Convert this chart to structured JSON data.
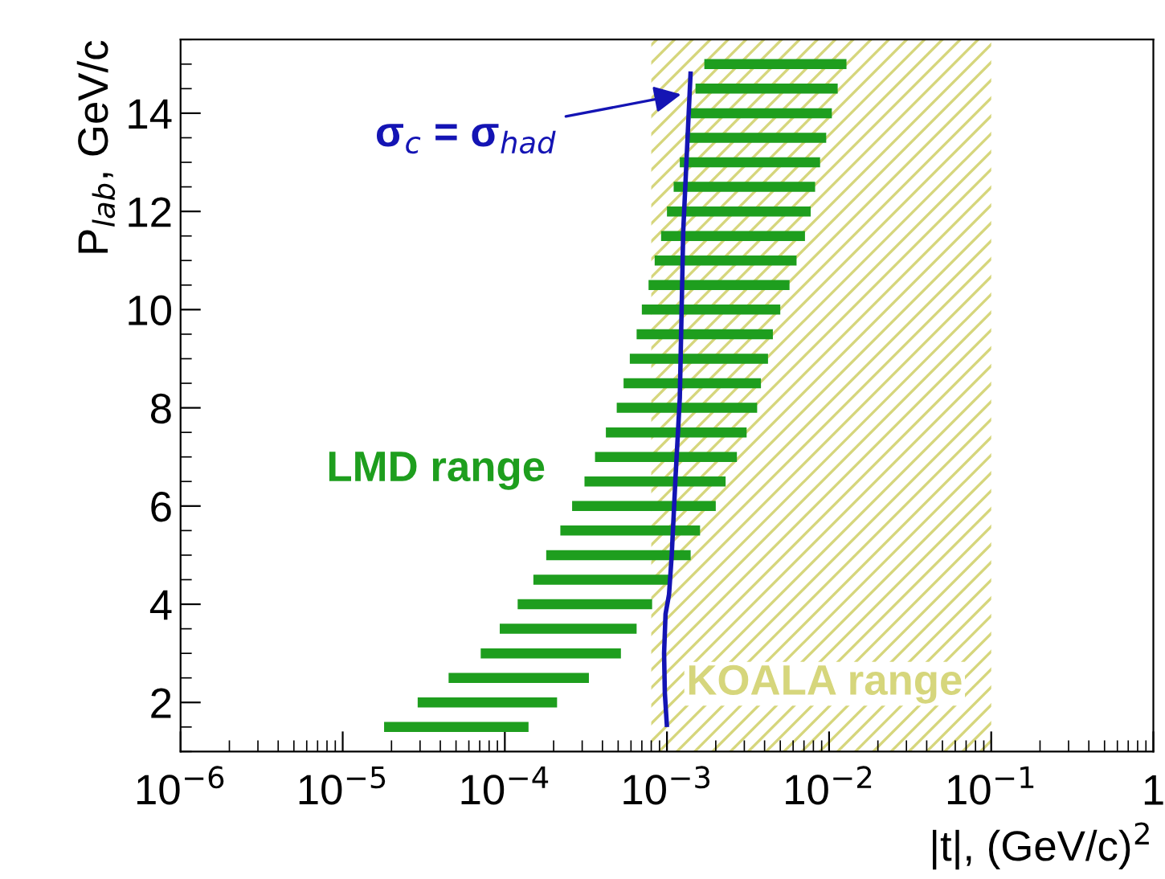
{
  "chart_data": {
    "type": "line",
    "xlabel": "|t|, (GeV/c)$^{2}$",
    "ylabel": "P$_{lab}$, GeV/c",
    "log": "x",
    "xlim": [
      1e-06,
      1
    ],
    "ylim": [
      1,
      15.5
    ],
    "xticks": [
      {
        "value": 1e-06,
        "label": "10$^{−6}$"
      },
      {
        "value": 1e-05,
        "label": "10$^{−5}$"
      },
      {
        "value": 0.0001,
        "label": "10$^{−4}$"
      },
      {
        "value": 0.001,
        "label": "10$^{−3}$"
      },
      {
        "value": 0.01,
        "label": "10$^{−2}$"
      },
      {
        "value": 0.1,
        "label": "10$^{−1}$"
      },
      1
    ],
    "yticks": [
      2,
      4,
      6,
      8,
      10,
      12,
      14
    ],
    "grid": false,
    "legend": false,
    "annotations": [
      {
        "text": "σ$_{c}$ = σ$_{had}$",
        "x": 0.0013,
        "y": 14.4
      }
    ],
    "bands": [
      {
        "axis": "x",
        "from": 0.0008,
        "to": 0.1,
        "label": "KOALA range",
        "color": "#d6d67c"
      }
    ],
    "series": [
      {
        "name": "LMD range",
        "color": "#1e9e1e",
        "line_style": "solid",
        "marker": "none",
        "x": [
          1.8e-05,
          0.00014,
          null,
          2.9e-05,
          0.00021,
          null,
          4.5e-05,
          0.00033,
          null,
          7.1e-05,
          0.00052,
          null,
          9.3e-05,
          0.00065,
          null,
          0.00012,
          0.00081,
          null,
          0.00015,
          0.00105,
          null,
          0.00018,
          0.0014,
          null,
          0.00022,
          0.0016,
          null,
          0.00026,
          0.002,
          null,
          0.00031,
          0.0023,
          null,
          0.00036,
          0.0027,
          null,
          0.00042,
          0.0031,
          null,
          0.00049,
          0.0036,
          null,
          0.00054,
          0.0038,
          null,
          0.00059,
          0.0042,
          null,
          0.00065,
          0.0045,
          null,
          0.0007,
          0.005,
          null,
          0.00077,
          0.0057,
          null,
          0.00084,
          0.0063,
          null,
          0.00092,
          0.0071,
          null,
          0.001,
          0.0077,
          null,
          0.0011,
          0.0082,
          null,
          0.0012,
          0.0088,
          null,
          0.0013,
          0.0096,
          null,
          0.0014,
          0.0104,
          null,
          0.0015,
          0.0113,
          null,
          0.0017,
          0.0128
        ],
        "values": [
          1.5,
          1.5,
          null,
          2.0,
          2.0,
          null,
          2.5,
          2.5,
          null,
          3.0,
          3.0,
          null,
          3.5,
          3.5,
          null,
          4.0,
          4.0,
          null,
          4.5,
          4.5,
          null,
          5.0,
          5.0,
          null,
          5.5,
          5.5,
          null,
          6.0,
          6.0,
          null,
          6.5,
          6.5,
          null,
          7.0,
          7.0,
          null,
          7.5,
          7.5,
          null,
          8.0,
          8.0,
          null,
          8.5,
          8.5,
          null,
          9.0,
          9.0,
          null,
          9.5,
          9.5,
          null,
          10.0,
          10.0,
          null,
          10.5,
          10.5,
          null,
          11.0,
          11.0,
          null,
          11.5,
          11.5,
          null,
          12.0,
          12.0,
          null,
          12.5,
          12.5,
          null,
          13.0,
          13.0,
          null,
          13.5,
          13.5,
          null,
          14.0,
          14.0,
          null,
          14.5,
          14.5,
          null,
          15.0,
          15.0
        ]
      },
      {
        "color": "#1414b4",
        "line_style": "solid",
        "marker": "none",
        "x": [
          0.001,
          0.00097,
          0.00096,
          0.00098,
          0.00103,
          0.00107,
          0.00113,
          0.0012,
          0.00126,
          0.0014
        ],
        "values": [
          1.5,
          2.2,
          3.0,
          3.8,
          4.2,
          5.0,
          6.6,
          8.2,
          11.6,
          14.85
        ]
      }
    ]
  }
}
